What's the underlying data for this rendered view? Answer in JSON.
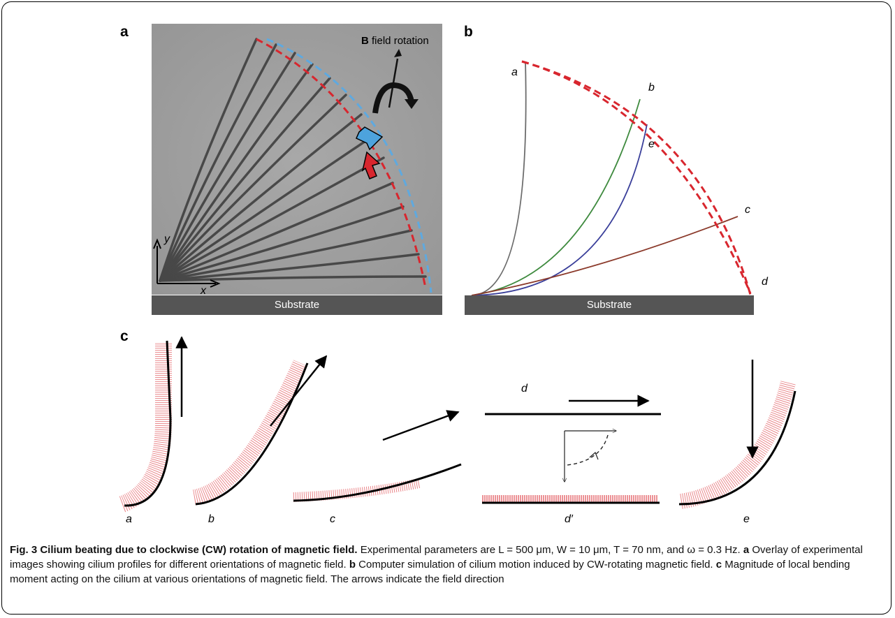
{
  "panel_labels": {
    "a": "a",
    "b": "b",
    "c": "c"
  },
  "panel_a": {
    "field_label_bold": "B",
    "field_label_rest": " field rotation",
    "axis_y": "y",
    "axis_x": "x",
    "substrate": "Substrate"
  },
  "panel_b": {
    "curve_labels": [
      "a",
      "b",
      "c",
      "d",
      "e"
    ],
    "substrate": "Substrate",
    "colors": {
      "a": "#6b6b6b",
      "b": "#3e8a3e",
      "c": "#8b3a2b",
      "e": "#3a3f9a",
      "envelope": "#d8262e"
    }
  },
  "panel_c": {
    "profile_labels": [
      "a",
      "b",
      "c",
      "d",
      "d′",
      "e"
    ],
    "moment_color": "#d8262e"
  },
  "caption": {
    "fig_label": "Fig. 3",
    "title": "Cilium beating due to clockwise (CW) rotation of magnetic field.",
    "params": "Experimental parameters are L = 500 μm, W = 10 μm, T = 70 nm, and ω = 0.3 Hz.",
    "a_label": "a",
    "a_text": "Overlay of experimental images showing cilium profiles for different orientations of magnetic field.",
    "b_label": "b",
    "b_text": "Computer simulation of cilium motion induced by CW-rotating magnetic field.",
    "c_label": "c",
    "c_text": "Magnitude of local bending moment acting on the cilium at various orientations of magnetic field. The arrows indicate the field direction"
  }
}
